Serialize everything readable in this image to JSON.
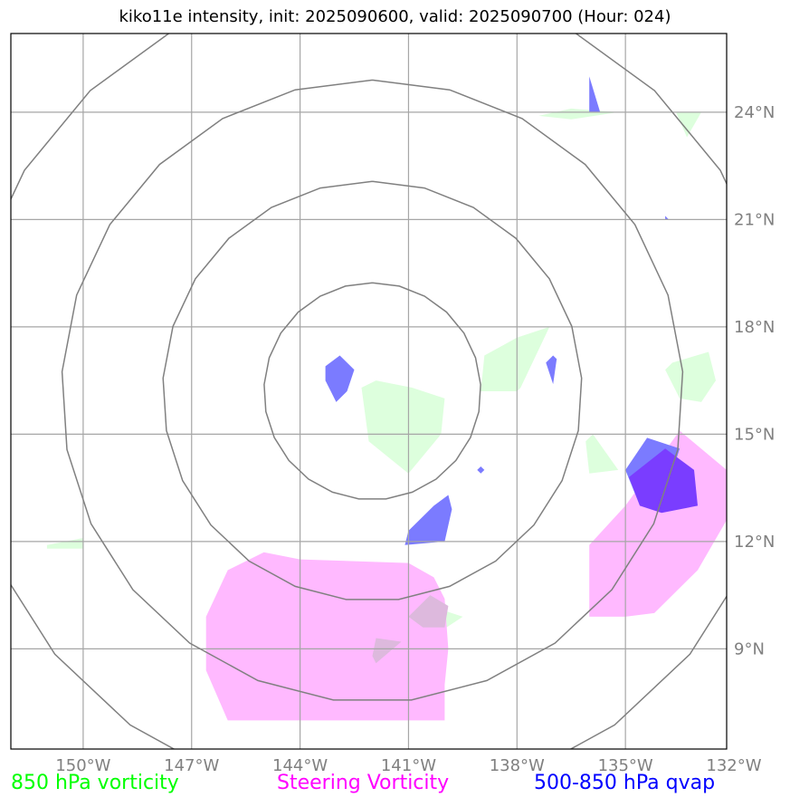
{
  "title": "kiko11e intensity, init: 2025090600, valid: 2025090700 (Hour: 024)",
  "legend": [
    {
      "label": "850 hPa vorticity",
      "color": "#00ff00"
    },
    {
      "label": "Steering Vorticity",
      "color": "#ff00ff"
    },
    {
      "label": "500-850 hPa qvap",
      "color": "#0000ff"
    }
  ],
  "colors": {
    "grid": "#a6a6a6",
    "rings": "#808080",
    "vort850": "#ddffdd",
    "steering": "#ffb9ff",
    "qvap": "#7b7bff",
    "qvap_dense": "#7a3dff",
    "overlap": "#ddb9dd"
  },
  "chart_data": {
    "type": "map",
    "title": "kiko11e intensity, init: 2025090600, valid: 2025090700 (Hour: 024)",
    "xlim": [
      -152,
      -132.2
    ],
    "ylim": [
      6.2,
      26.2
    ],
    "x_ticks": [
      {
        "value": -150,
        "label": "150°W"
      },
      {
        "value": -147,
        "label": "147°W"
      },
      {
        "value": -144,
        "label": "144°W"
      },
      {
        "value": -141,
        "label": "141°W"
      },
      {
        "value": -138,
        "label": "138°W"
      },
      {
        "value": -135,
        "label": "135°W"
      },
      {
        "value": -132,
        "label": "132°W"
      }
    ],
    "y_ticks": [
      {
        "value": 9,
        "label": "9°N"
      },
      {
        "value": 12,
        "label": "12°N"
      },
      {
        "value": 15,
        "label": "15°N"
      },
      {
        "value": 18,
        "label": "18°N"
      },
      {
        "value": 21,
        "label": "21°N"
      },
      {
        "value": 24,
        "label": "24°N"
      }
    ],
    "range_ring_center": [
      -142.0,
      16.2
    ],
    "range_rings_deg": [
      3,
      5.8,
      8.6,
      11.4
    ],
    "fields": [
      {
        "name": "850 hPa vorticity",
        "style": "vort850",
        "polygons": [
          [
            [
              -140.9,
              16.3
            ],
            [
              -141.9,
              16.5
            ],
            [
              -142.3,
              16.3
            ],
            [
              -142.1,
              14.8
            ],
            [
              -141.0,
              13.9
            ],
            [
              -140.1,
              15.0
            ],
            [
              -140.0,
              16.0
            ]
          ],
          [
            [
              -138.9,
              17.2
            ],
            [
              -138.0,
              17.7
            ],
            [
              -137.1,
              18.0
            ],
            [
              -137.9,
              16.3
            ],
            [
              -138.0,
              16.2
            ],
            [
              -139.0,
              16.2
            ]
          ],
          [
            [
              -133.7,
              17.0
            ],
            [
              -132.7,
              17.3
            ],
            [
              -132.5,
              16.5
            ],
            [
              -132.9,
              15.9
            ],
            [
              -133.5,
              16.0
            ],
            [
              -133.9,
              16.8
            ]
          ],
          [
            [
              -135.9,
              15.0
            ],
            [
              -135.2,
              14.0
            ],
            [
              -136.0,
              13.9
            ],
            [
              -136.1,
              14.8
            ]
          ],
          [
            [
              -132.9,
              24.0
            ],
            [
              -133.6,
              24.0
            ],
            [
              -133.3,
              23.3
            ]
          ],
          [
            [
              -136.5,
              24.1
            ],
            [
              -135.2,
              24.0
            ],
            [
              -136.5,
              23.8
            ],
            [
              -137.4,
              23.9
            ]
          ],
          [
            [
              -151.0,
              11.9
            ],
            [
              -150.0,
              12.1
            ],
            [
              -150.0,
              11.8
            ],
            [
              -151.0,
              11.8
            ]
          ],
          [
            [
              -139.5,
              9.9
            ],
            [
              -140.1,
              10.1
            ],
            [
              -140.9,
              9.8
            ],
            [
              -140.4,
              9.3
            ]
          ]
        ]
      },
      {
        "name": "Steering Vorticity",
        "style": "steering",
        "polygons": [
          [
            [
              -146.0,
              11.2
            ],
            [
              -145.0,
              11.7
            ],
            [
              -144.0,
              11.5
            ],
            [
              -141.0,
              11.4
            ],
            [
              -140.3,
              11.0
            ],
            [
              -140.0,
              10.4
            ],
            [
              -139.9,
              9.0
            ],
            [
              -140.0,
              8.0
            ],
            [
              -140.0,
              7.0
            ],
            [
              -146.0,
              7.0
            ],
            [
              -146.6,
              8.4
            ],
            [
              -146.6,
              9.9
            ]
          ],
          [
            [
              -133.5,
              15.1
            ],
            [
              -132.2,
              14.0
            ],
            [
              -132.2,
              12.6
            ],
            [
              -133.0,
              11.2
            ],
            [
              -134.2,
              10.0
            ],
            [
              -135.0,
              9.9
            ],
            [
              -136.0,
              9.9
            ],
            [
              -136.0,
              11.0
            ],
            [
              -136.0,
              11.9
            ],
            [
              -135.0,
              13.0
            ]
          ]
        ]
      },
      {
        "name": "500-850 hPa qvap",
        "style": "qvap",
        "polygons": [
          [
            [
              -142.9,
              17.2
            ],
            [
              -142.5,
              16.8
            ],
            [
              -142.7,
              16.2
            ],
            [
              -143.0,
              15.9
            ],
            [
              -143.3,
              16.5
            ],
            [
              -143.3,
              16.9
            ]
          ],
          [
            [
              -139.8,
              12.9
            ],
            [
              -139.9,
              13.3
            ],
            [
              -140.3,
              13.0
            ],
            [
              -141.0,
              12.3
            ],
            [
              -141.1,
              11.9
            ],
            [
              -140.0,
              12.0
            ]
          ],
          [
            [
              -136.9,
              17.1
            ],
            [
              -137.0,
              16.4
            ],
            [
              -137.2,
              17.0
            ],
            [
              -137.0,
              17.2
            ]
          ],
          [
            [
              -134.4,
              14.9
            ],
            [
              -135.0,
              14.0
            ],
            [
              -134.6,
              13.0
            ],
            [
              -134.0,
              13.0
            ],
            [
              -133.5,
              14.6
            ]
          ],
          [
            [
              -135.7,
              24.0
            ],
            [
              -136.0,
              25.0
            ],
            [
              -136.0,
              24.0
            ]
          ],
          [
            [
              -139.0,
              14.1
            ],
            [
              -139.1,
              14.0
            ],
            [
              -139.0,
              13.9
            ],
            [
              -138.9,
              14.0
            ]
          ],
          [
            [
              -133.9,
              21.1
            ],
            [
              -133.8,
              21.0
            ],
            [
              -133.9,
              21.0
            ]
          ]
        ]
      },
      {
        "name": "qvap dense",
        "style": "qvap_dense",
        "polygons": [
          [
            [
              -133.9,
              14.6
            ],
            [
              -133.1,
              14.0
            ],
            [
              -133.0,
              13.0
            ],
            [
              -134.0,
              12.8
            ],
            [
              -134.6,
              13.0
            ],
            [
              -134.9,
              13.8
            ]
          ]
        ]
      },
      {
        "name": "overlap",
        "style": "overlap",
        "polygons": [
          [
            [
              -141.2,
              9.2
            ],
            [
              -141.9,
              9.3
            ],
            [
              -142.0,
              8.8
            ],
            [
              -141.9,
              8.6
            ]
          ],
          [
            [
              -140.4,
              10.5
            ],
            [
              -139.9,
              10.2
            ],
            [
              -140.0,
              9.6
            ],
            [
              -140.6,
              9.6
            ],
            [
              -141.0,
              9.9
            ]
          ]
        ]
      }
    ]
  }
}
